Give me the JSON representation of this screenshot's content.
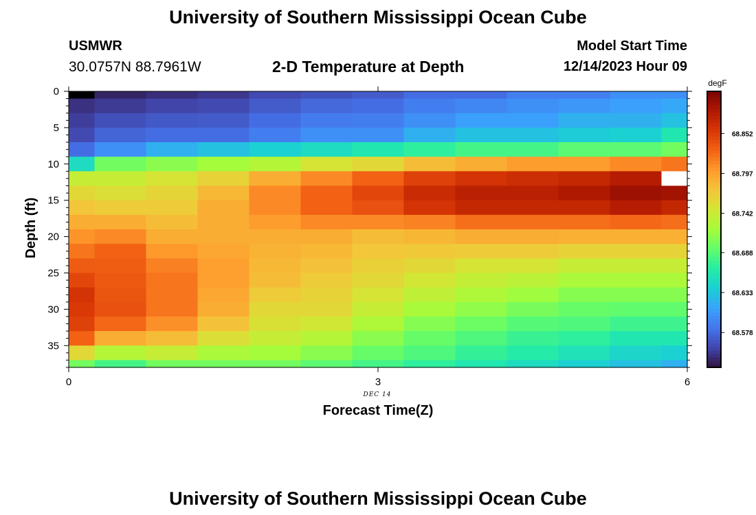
{
  "header": {
    "title": "University of Southern Mississippi Ocean Cube",
    "station_id": "USMWR",
    "coords": "30.0757N  88.7961W",
    "subtitle": "2-D Temperature at Depth",
    "start_label": "Model Start Time",
    "start_value": "12/14/2023 Hour 09"
  },
  "footer": {
    "title": "University of Southern Mississippi Ocean Cube"
  },
  "colors": {
    "colormap": [
      "#30123b",
      "#4145ab",
      "#4675ed",
      "#39a2fc",
      "#1bcfd4",
      "#24eca6",
      "#61fc6c",
      "#a4fc3b",
      "#d1e834",
      "#f3c63a",
      "#fe9b2d",
      "#f36315",
      "#d93806",
      "#b11901",
      "#7a0402"
    ],
    "nodata_top": "#000000",
    "nodata_bottom": "#ffffff"
  },
  "chart_data": {
    "type": "heatmap",
    "xlabel": "Forecast Time(Z)",
    "ylabel": "Depth (ft)",
    "x_ticks": [
      "0",
      "3",
      "6"
    ],
    "x_tick_values": [
      0,
      3,
      6
    ],
    "x_range": [
      0,
      6
    ],
    "date_label": "DEC 14",
    "y_ticks": [
      "0",
      "5",
      "10",
      "15",
      "20",
      "25",
      "30",
      "35"
    ],
    "y_tick_values": [
      0,
      5,
      10,
      15,
      20,
      25,
      30,
      35
    ],
    "y_range": [
      0,
      38
    ],
    "y_reversed": true,
    "colorbar": {
      "units": "degF",
      "tick_labels": [
        "68.852",
        "68.797",
        "68.742",
        "68.688",
        "68.633",
        "68.578"
      ],
      "tick_values": [
        68.852,
        68.797,
        68.742,
        68.688,
        68.633,
        68.578
      ],
      "range": [
        68.53,
        68.91
      ]
    },
    "time_columns": [
      0,
      0.5,
      1,
      1.5,
      2,
      2.5,
      3,
      3.5,
      4,
      4.5,
      5,
      5.5,
      6
    ],
    "depth_levels": [
      0,
      2,
      4,
      6,
      8,
      10,
      12,
      14,
      16,
      18,
      20,
      22,
      24,
      26,
      28,
      30,
      32,
      34,
      36,
      38
    ],
    "profiles": [
      [
        [
          0,
          68.54
        ],
        [
          6,
          68.56
        ],
        [
          8,
          68.58
        ],
        [
          9,
          68.62
        ],
        [
          10,
          68.65
        ],
        [
          11,
          68.69
        ],
        [
          12,
          68.74
        ],
        [
          14,
          68.76
        ],
        [
          18,
          68.79
        ],
        [
          22,
          68.82
        ],
        [
          28,
          68.86
        ],
        [
          32,
          68.85
        ],
        [
          34,
          68.83
        ],
        [
          35,
          68.79
        ],
        [
          36,
          68.76
        ],
        [
          37,
          68.72
        ],
        [
          38,
          68.7
        ]
      ],
      [
        [
          0,
          68.54
        ],
        [
          6,
          68.575
        ],
        [
          8,
          68.6
        ],
        [
          9,
          68.66
        ],
        [
          10,
          68.7
        ],
        [
          11,
          68.73
        ],
        [
          13,
          68.75
        ],
        [
          15,
          68.76
        ],
        [
          18,
          68.79
        ],
        [
          22,
          68.83
        ],
        [
          30,
          68.84
        ],
        [
          33,
          68.82
        ],
        [
          34,
          68.79
        ],
        [
          35,
          68.76
        ],
        [
          36,
          68.73
        ],
        [
          37,
          68.7
        ],
        [
          38,
          68.68
        ]
      ],
      [
        [
          0,
          68.545
        ],
        [
          6,
          68.58
        ],
        [
          8,
          68.62
        ],
        [
          9,
          68.67
        ],
        [
          10,
          68.71
        ],
        [
          11,
          68.74
        ],
        [
          13,
          68.76
        ],
        [
          16,
          68.77
        ],
        [
          20,
          68.79
        ],
        [
          25,
          68.82
        ],
        [
          30,
          68.82
        ],
        [
          33,
          68.8
        ],
        [
          35,
          68.76
        ],
        [
          37,
          68.72
        ],
        [
          38,
          68.7
        ]
      ],
      [
        [
          0,
          68.55
        ],
        [
          6,
          68.58
        ],
        [
          8,
          68.63
        ],
        [
          9,
          68.68
        ],
        [
          10,
          68.72
        ],
        [
          11,
          68.75
        ],
        [
          13,
          68.78
        ],
        [
          16,
          68.79
        ],
        [
          20,
          68.79
        ],
        [
          25,
          68.8
        ],
        [
          30,
          68.79
        ],
        [
          33,
          68.77
        ],
        [
          35,
          68.74
        ],
        [
          37,
          68.71
        ],
        [
          38,
          68.7
        ]
      ],
      [
        [
          0,
          68.56
        ],
        [
          6,
          68.59
        ],
        [
          8,
          68.64
        ],
        [
          9,
          68.69
        ],
        [
          10,
          68.73
        ],
        [
          11,
          68.77
        ],
        [
          13,
          68.81
        ],
        [
          16,
          68.81
        ],
        [
          20,
          68.79
        ],
        [
          26,
          68.78
        ],
        [
          30,
          68.76
        ],
        [
          33,
          68.75
        ],
        [
          35,
          68.73
        ],
        [
          37,
          68.71
        ],
        [
          38,
          68.7
        ]
      ],
      [
        [
          0,
          68.565
        ],
        [
          6,
          68.6
        ],
        [
          8,
          68.65
        ],
        [
          9,
          68.7
        ],
        [
          10,
          68.75
        ],
        [
          11,
          68.79
        ],
        [
          13,
          68.83
        ],
        [
          16,
          68.83
        ],
        [
          20,
          68.79
        ],
        [
          26,
          68.77
        ],
        [
          30,
          68.76
        ],
        [
          33,
          68.74
        ],
        [
          35,
          68.72
        ],
        [
          37,
          68.7
        ],
        [
          38,
          68.69
        ]
      ],
      [
        [
          0,
          68.57
        ],
        [
          6,
          68.6
        ],
        [
          8,
          68.66
        ],
        [
          9,
          68.71
        ],
        [
          10,
          68.76
        ],
        [
          11,
          68.81
        ],
        [
          13,
          68.85
        ],
        [
          16,
          68.84
        ],
        [
          20,
          68.78
        ],
        [
          26,
          68.76
        ],
        [
          30,
          68.74
        ],
        [
          33,
          68.72
        ],
        [
          35,
          68.7
        ],
        [
          37,
          68.69
        ],
        [
          38,
          68.68
        ]
      ],
      [
        [
          0,
          68.58
        ],
        [
          4,
          68.6
        ],
        [
          7,
          68.63
        ],
        [
          8,
          68.67
        ],
        [
          9,
          68.72
        ],
        [
          10,
          68.78
        ],
        [
          11,
          68.83
        ],
        [
          13,
          68.87
        ],
        [
          16,
          68.86
        ],
        [
          19,
          68.79
        ],
        [
          24,
          68.76
        ],
        [
          29,
          68.73
        ],
        [
          33,
          68.7
        ],
        [
          35,
          68.69
        ],
        [
          37,
          68.68
        ],
        [
          38,
          68.67
        ]
      ],
      [
        [
          0,
          68.58
        ],
        [
          4,
          68.61
        ],
        [
          7,
          68.64
        ],
        [
          8,
          68.68
        ],
        [
          9,
          68.73
        ],
        [
          10,
          68.79
        ],
        [
          11,
          68.84
        ],
        [
          13,
          68.88
        ],
        [
          16,
          68.87
        ],
        [
          19,
          68.8
        ],
        [
          24,
          68.75
        ],
        [
          29,
          68.72
        ],
        [
          33,
          68.69
        ],
        [
          35,
          68.68
        ],
        [
          37,
          68.665
        ],
        [
          38,
          68.66
        ]
      ],
      [
        [
          0,
          68.59
        ],
        [
          4,
          68.61
        ],
        [
          7,
          68.64
        ],
        [
          8,
          68.68
        ],
        [
          9,
          68.74
        ],
        [
          10,
          68.8
        ],
        [
          11,
          68.85
        ],
        [
          13,
          68.88
        ],
        [
          16,
          68.87
        ],
        [
          19,
          68.8
        ],
        [
          24,
          68.75
        ],
        [
          29,
          68.71
        ],
        [
          33,
          68.68
        ],
        [
          35,
          68.67
        ],
        [
          37,
          68.66
        ],
        [
          38,
          68.65
        ]
      ],
      [
        [
          0,
          68.59
        ],
        [
          4,
          68.62
        ],
        [
          7,
          68.645
        ],
        [
          8,
          68.69
        ],
        [
          9,
          68.74
        ],
        [
          10,
          68.8
        ],
        [
          11,
          68.85
        ],
        [
          13,
          68.89
        ],
        [
          16,
          68.87
        ],
        [
          19,
          68.8
        ],
        [
          24,
          68.74
        ],
        [
          29,
          68.7
        ],
        [
          33,
          68.68
        ],
        [
          35,
          68.66
        ],
        [
          37,
          68.65
        ],
        [
          38,
          68.64
        ]
      ],
      [
        [
          0,
          68.6
        ],
        [
          4,
          68.62
        ],
        [
          7,
          68.65
        ],
        [
          8,
          68.69
        ],
        [
          9,
          68.75
        ],
        [
          10,
          68.81
        ],
        [
          11,
          68.86
        ],
        [
          13,
          68.9
        ],
        [
          16,
          68.88
        ],
        [
          19,
          68.8
        ],
        [
          24,
          68.74
        ],
        [
          29,
          68.7
        ],
        [
          33,
          68.67
        ],
        [
          35,
          68.65
        ],
        [
          37,
          68.64
        ],
        [
          38,
          68.63
        ]
      ],
      [
        [
          0,
          68.6
        ],
        [
          4,
          68.63
        ],
        [
          6,
          68.66
        ],
        [
          8,
          68.7
        ],
        [
          9,
          68.76
        ],
        [
          10,
          68.82
        ],
        [
          11,
          68.87
        ],
        [
          13,
          68.9
        ],
        [
          16,
          68.87
        ],
        [
          19,
          68.8
        ],
        [
          24,
          68.74
        ],
        [
          29,
          68.7
        ],
        [
          33,
          68.67
        ],
        [
          35,
          68.65
        ],
        [
          37,
          68.63
        ],
        [
          38,
          68.62
        ]
      ]
    ],
    "nodata_cells": [
      {
        "time_col": 0,
        "depth_level": 0,
        "fill": "nodata_top"
      },
      {
        "time_col": 12,
        "depth_level": 6,
        "fill": "nodata_bottom"
      }
    ]
  }
}
